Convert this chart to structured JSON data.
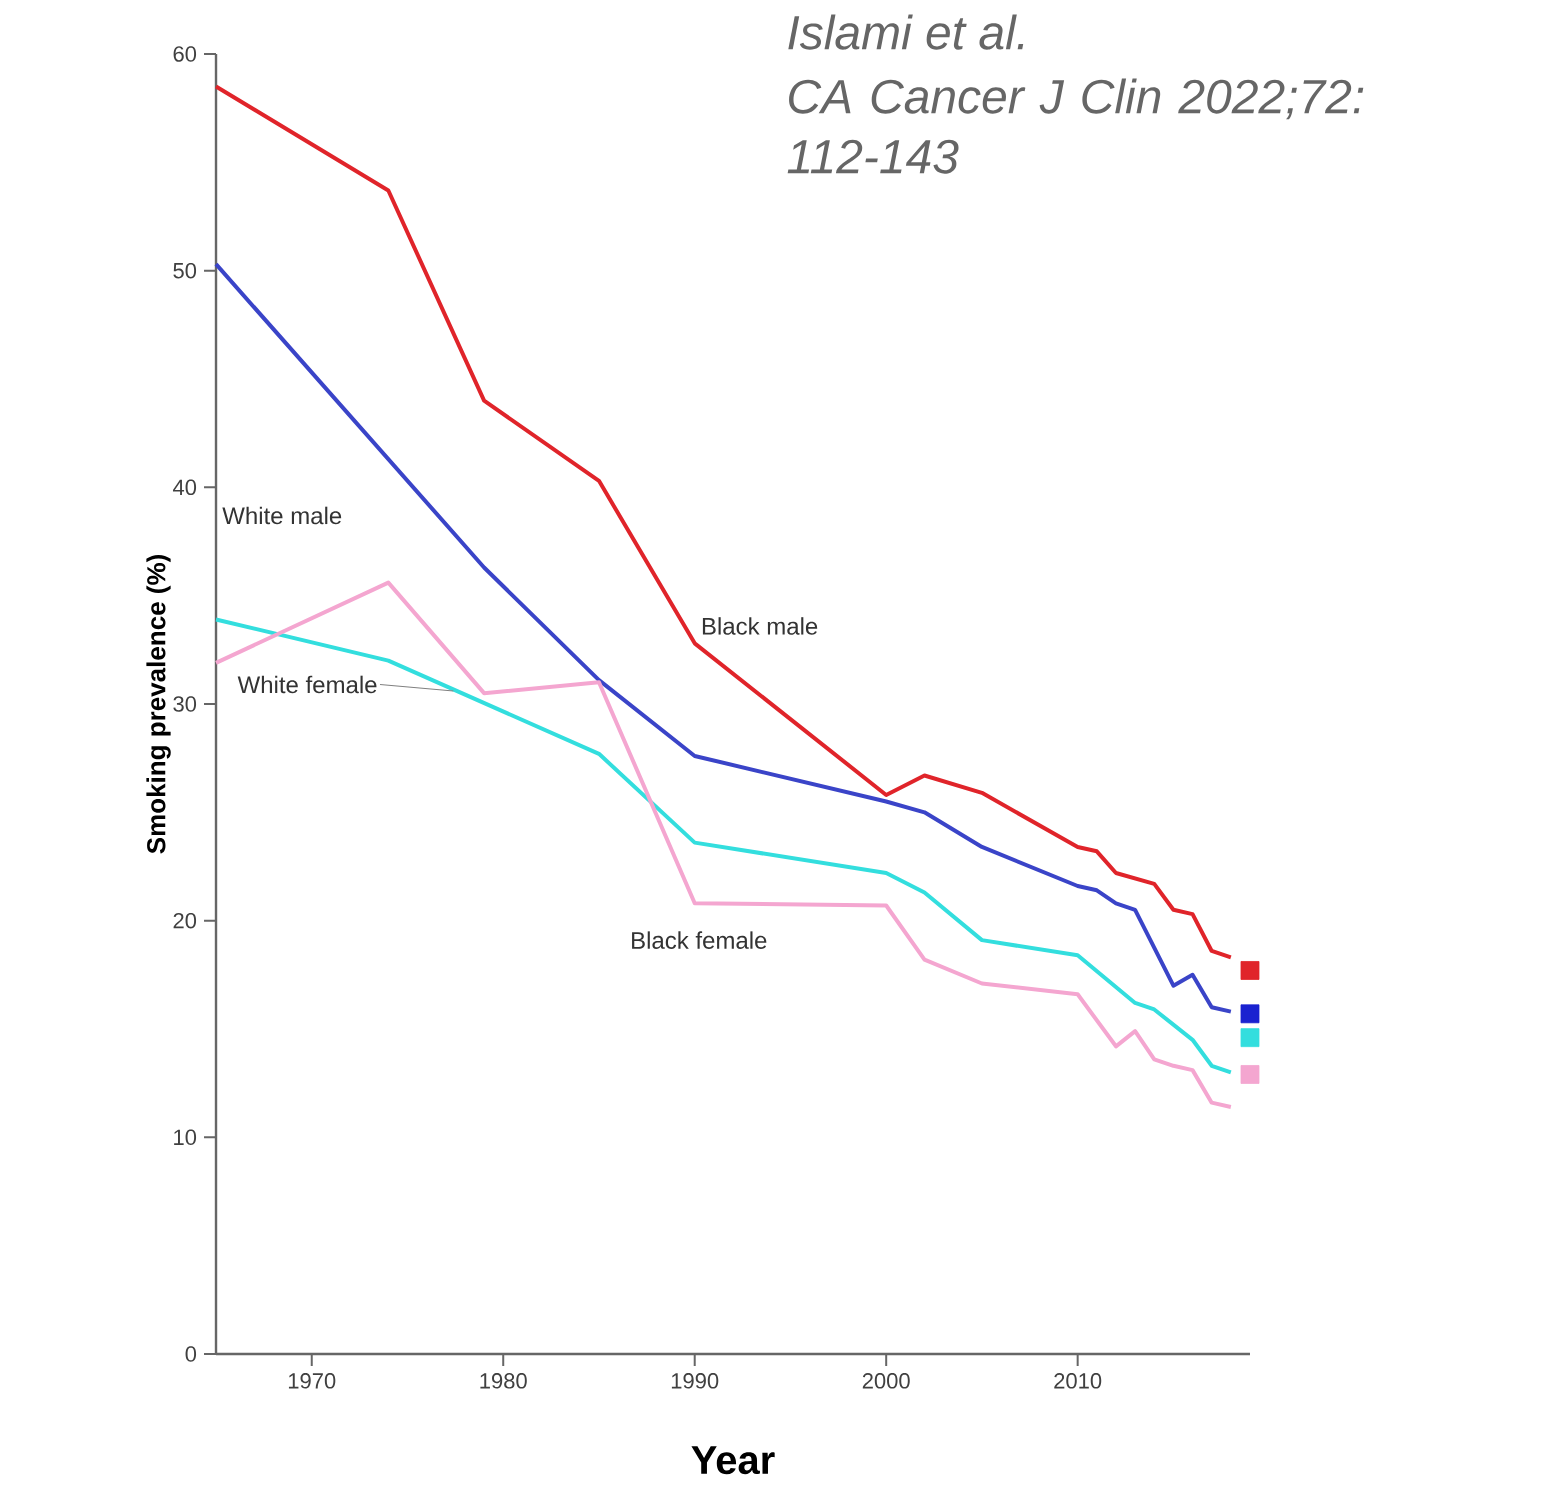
{
  "chart_data": {
    "type": "line",
    "xlabel": "Year",
    "ylabel": "Smoking prevalence (%)",
    "annotations": [
      "Islami et al.",
      "CA Cancer J Clin 2022;72: 112-143"
    ],
    "xlim": [
      1965,
      2019
    ],
    "xticks": [
      1970,
      1980,
      1990,
      2000,
      2010
    ],
    "ylim": [
      0,
      60
    ],
    "yticks": [
      0,
      10,
      20,
      30,
      40,
      50,
      60
    ],
    "grid": false,
    "legend": false,
    "marker": "none",
    "line_style": "solid",
    "series": [
      {
        "name": "Black male",
        "color": "#e0242a",
        "x": [
          1965,
          1974,
          1979,
          1985,
          1990,
          2000,
          2002,
          2005,
          2010,
          2011,
          2012,
          2014,
          2015,
          2016,
          2017,
          2018
        ],
        "values": [
          58.5,
          53.7,
          44.0,
          40.3,
          32.8,
          25.8,
          26.7,
          25.9,
          23.4,
          23.2,
          22.2,
          21.7,
          20.5,
          20.3,
          18.6,
          18.3
        ]
      },
      {
        "name": "White male",
        "color": "#3a44c8",
        "x": [
          1965,
          1979,
          1985,
          1990,
          2000,
          2002,
          2005,
          2010,
          2011,
          2012,
          2013,
          2015,
          2016,
          2017,
          2018
        ],
        "values": [
          50.3,
          36.3,
          31.1,
          27.6,
          25.5,
          25.0,
          23.4,
          21.6,
          21.4,
          20.8,
          20.5,
          17.0,
          17.5,
          16.0,
          15.8
        ]
      },
      {
        "name": "White female",
        "color": "#33dede",
        "x": [
          1965,
          1974,
          1985,
          1990,
          2000,
          2002,
          2005,
          2010,
          2013,
          2014,
          2016,
          2017,
          2018
        ],
        "values": [
          33.9,
          32.0,
          27.7,
          23.6,
          22.2,
          21.3,
          19.1,
          18.4,
          16.2,
          15.9,
          14.5,
          13.3,
          13.0
        ]
      },
      {
        "name": "Black female",
        "color": "#f4a6d0",
        "x": [
          1965,
          1974,
          1979,
          1985,
          1990,
          2000,
          2002,
          2005,
          2010,
          2012,
          2013,
          2014,
          2015,
          2016,
          2017,
          2018
        ],
        "values": [
          31.9,
          35.6,
          30.5,
          31.0,
          20.8,
          20.7,
          18.2,
          17.1,
          16.6,
          14.2,
          14.9,
          13.6,
          13.3,
          13.1,
          11.6,
          11.4
        ]
      },
      {
        "type": "scatter",
        "marker": "square",
        "color": "#e0242a",
        "x": [
          2019
        ],
        "values": [
          17.7
        ]
      },
      {
        "type": "scatter",
        "marker": "square",
        "color": "#1a22d0",
        "x": [
          2019
        ],
        "values": [
          15.7
        ]
      },
      {
        "type": "scatter",
        "marker": "square",
        "color": "#33dede",
        "x": [
          2019
        ],
        "values": [
          14.6
        ]
      },
      {
        "type": "scatter",
        "marker": "square",
        "color": "#f4a6d0",
        "x": [
          2019
        ],
        "values": [
          12.9
        ]
      }
    ]
  }
}
